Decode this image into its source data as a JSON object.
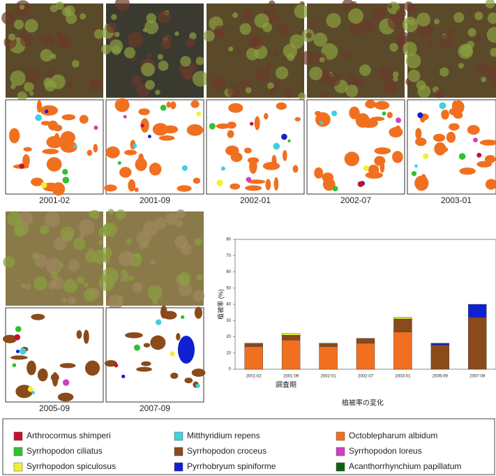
{
  "panels": [
    "2001-02",
    "2001-09",
    "2002-01",
    "2002-07",
    "2003-01",
    "2005-09",
    "2007-09"
  ],
  "chart_data": {
    "type": "bar",
    "stacked": true,
    "y_label": "植被率 (%)",
    "x_label": "調査期",
    "caption": "植被率の変化",
    "categories": [
      "2001-02",
      "2001-09",
      "2002-01",
      "2002-07",
      "2003-01",
      "2005-09",
      "2007-09"
    ],
    "ylim": [
      0,
      80
    ],
    "yticks": [
      0,
      10,
      20,
      30,
      40,
      50,
      60,
      70,
      80
    ],
    "series": [
      {
        "name": "Arthrocormus shimperi",
        "color": "#c8102e",
        "values": [
          0,
          0,
          0,
          0,
          0,
          0,
          0
        ]
      },
      {
        "name": "Mitthyridium repens",
        "color": "#40d0e0",
        "values": [
          0,
          0,
          0,
          0,
          0,
          0,
          0
        ]
      },
      {
        "name": "Octoblepharum albidum",
        "color": "#f07020",
        "values": [
          14,
          18,
          14,
          16,
          23,
          0,
          0
        ]
      },
      {
        "name": "Syrrhopodon ciliatus",
        "color": "#30c030",
        "values": [
          0,
          0,
          0,
          0,
          0,
          0,
          0
        ]
      },
      {
        "name": "Syrrhopodon croceus",
        "color": "#8a4a1a",
        "values": [
          2,
          3,
          2,
          3,
          8,
          15,
          32
        ]
      },
      {
        "name": "Syrrhopodon loreus",
        "color": "#d040c0",
        "values": [
          0,
          0,
          0,
          0,
          0,
          0,
          0
        ]
      },
      {
        "name": "Syrrhopodon spiculosus",
        "color": "#f0f030",
        "values": [
          0,
          1,
          0,
          0,
          1,
          0,
          0
        ]
      },
      {
        "name": "Pyrrhobryum spiniforme",
        "color": "#1020d0",
        "values": [
          0,
          0,
          0,
          0,
          0,
          1,
          8
        ]
      },
      {
        "name": "Acanthorrhynchium papillatum",
        "color": "#106010",
        "values": [
          0,
          0,
          0,
          0,
          0,
          0,
          0
        ]
      }
    ]
  }
}
